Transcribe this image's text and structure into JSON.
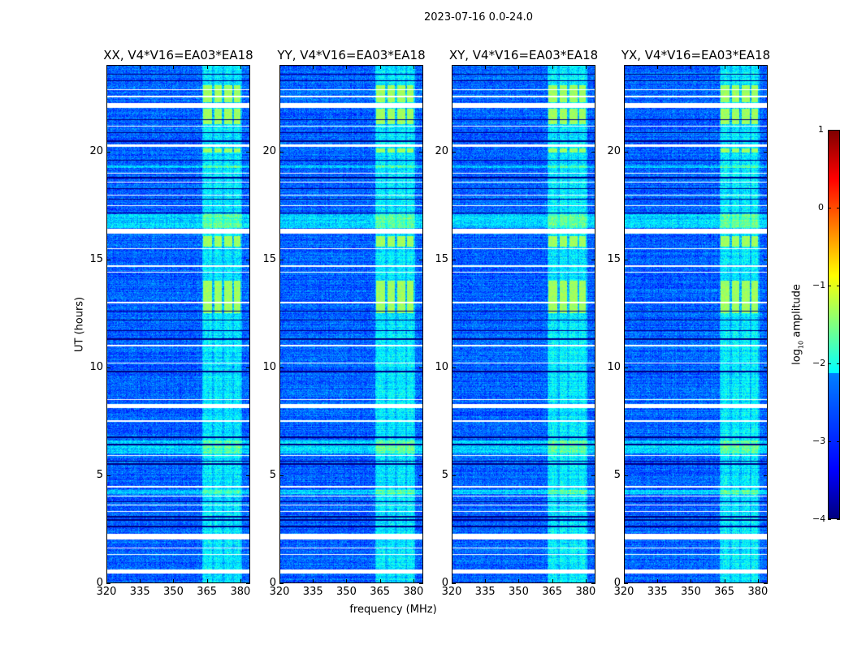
{
  "chart_data": {
    "type": "heatmap",
    "suptitle": "2023-07-16 0.0-24.0",
    "xlabel": "frequency (MHz)",
    "ylabel": "UT (hours)",
    "xlim": [
      320,
      384.4
    ],
    "ylim": [
      0,
      24
    ],
    "xticks": [
      "320",
      "335",
      "350",
      "365",
      "380"
    ],
    "yticks": [
      "0",
      "5",
      "10",
      "15",
      "20"
    ],
    "panels": [
      {
        "title": "XX, V4*V16=EA03*EA18",
        "seed": 11
      },
      {
        "title": "YY, V4*V16=EA03*EA18",
        "seed": 23
      },
      {
        "title": "XY, V4*V16=EA03*EA18",
        "seed": 37
      },
      {
        "title": "YX, V4*V16=EA03*EA18",
        "seed": 51
      }
    ],
    "colorbar": {
      "label_prefix": "log",
      "label_sub": "10",
      "label_suffix": " amplitude",
      "range": [
        -4,
        1
      ],
      "ticks": [
        "1",
        "0",
        "−1",
        "−2",
        "−3",
        "−4"
      ],
      "colormap": "jet"
    },
    "background_log_amplitude": -2.9,
    "rfi_band_mhz": [
      363,
      381
    ],
    "rfi_channels_mhz": [
      [
        363.5,
        367.5
      ],
      [
        368.5,
        372
      ],
      [
        373,
        376.5
      ],
      [
        377.5,
        380.5
      ]
    ],
    "rfi_bright_hours": [
      [
        12.5,
        14.0
      ],
      [
        15.6,
        16.1
      ],
      [
        19.95,
        20.15
      ],
      [
        21.3,
        22.0
      ],
      [
        22.3,
        23.1
      ]
    ],
    "broadband_bright_hours": [
      [
        16.45,
        17.1
      ],
      [
        6.0,
        6.6
      ],
      [
        4.1,
        4.3
      ],
      [
        19.25,
        19.35
      ]
    ],
    "flagged_hours": [
      [
        0.4,
        0.62
      ],
      [
        2.0,
        2.25
      ],
      [
        8.1,
        8.28
      ],
      [
        16.2,
        16.42
      ],
      [
        20.22,
        20.36
      ],
      [
        22.05,
        22.25
      ],
      [
        22.52,
        22.6
      ]
    ],
    "flagged_lines_hours": [
      1.3,
      1.6,
      3.3,
      3.6,
      4.0,
      4.45,
      5.9,
      7.5,
      8.5,
      10.2,
      11.0,
      13.0,
      14.4,
      14.7,
      15.5,
      17.5,
      18.0,
      18.6,
      19.0,
      21.2,
      22.9
    ],
    "dropout_lines_hours": [
      2.6,
      2.9,
      3.05,
      3.75,
      5.5,
      5.62,
      6.4,
      6.75,
      9.8,
      11.3,
      11.7,
      12.2,
      12.6,
      17.15,
      17.8,
      18.3,
      18.8,
      19.6,
      20.5,
      20.9,
      21.5,
      23.3,
      23.6
    ]
  }
}
